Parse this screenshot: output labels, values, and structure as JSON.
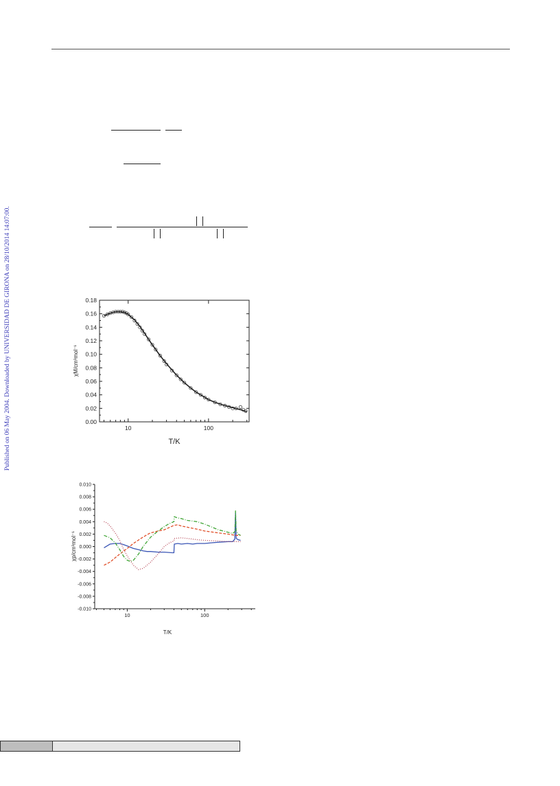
{
  "sidebar": {
    "watermark": "Published on 06 May 2004. Downloaded by UNIVERSIDAD DE GIRONA on 28/10/2014 14:07:00."
  },
  "chart_data": [
    {
      "type": "scatter",
      "title": "",
      "xlabel": "T/K",
      "ylabel": "χM/cm³mol⁻¹",
      "xscale": "log",
      "xlim": [
        4.4,
        320
      ],
      "ylim": [
        0,
        0.18
      ],
      "xticks": [
        10,
        100
      ],
      "xtick_labels": [
        "10",
        "100"
      ],
      "yticks": [
        0.0,
        0.02,
        0.04,
        0.06,
        0.08,
        0.1,
        0.12,
        0.14,
        0.16,
        0.18
      ],
      "ytick_labels": [
        "0.00",
        "0.02",
        "0.04",
        "0.06",
        "0.08",
        "0.10",
        "0.12",
        "0.14",
        "0.16",
        "0.18"
      ],
      "grid": false,
      "series": [
        {
          "kind": "points",
          "marker": "open-circle",
          "x": [
            5,
            5.5,
            6,
            6.5,
            7,
            7.5,
            8,
            8.5,
            9,
            9.5,
            10,
            11,
            12,
            13,
            14,
            15,
            16,
            18,
            20,
            22,
            25,
            28,
            30,
            35,
            40,
            45,
            50,
            60,
            70,
            80,
            90,
            100,
            120,
            140,
            160,
            180,
            200,
            220,
            250,
            270,
            290
          ],
          "y": [
            0.157,
            0.159,
            0.161,
            0.162,
            0.163,
            0.163,
            0.163,
            0.163,
            0.162,
            0.161,
            0.159,
            0.155,
            0.15,
            0.145,
            0.14,
            0.135,
            0.13,
            0.122,
            0.114,
            0.107,
            0.098,
            0.09,
            0.085,
            0.076,
            0.069,
            0.063,
            0.058,
            0.05,
            0.044,
            0.04,
            0.036,
            0.033,
            0.029,
            0.026,
            0.024,
            0.022,
            0.02,
            0.02,
            0.022,
            0.018,
            0.016
          ],
          "color": "#444444"
        },
        {
          "kind": "line",
          "x": [
            5,
            6,
            7,
            8,
            9,
            10,
            12,
            14,
            16,
            18,
            20,
            25,
            30,
            40,
            50,
            60,
            70,
            80,
            100,
            120,
            150,
            200,
            250,
            300
          ],
          "y": [
            0.157,
            0.161,
            0.163,
            0.163,
            0.162,
            0.159,
            0.151,
            0.141,
            0.131,
            0.122,
            0.114,
            0.098,
            0.086,
            0.069,
            0.058,
            0.05,
            0.044,
            0.04,
            0.033,
            0.029,
            0.025,
            0.021,
            0.018,
            0.015
          ],
          "color": "#222222"
        }
      ]
    },
    {
      "type": "line",
      "title": "",
      "xlabel": "T/K",
      "ylabel": "χp/cm³mol⁻¹",
      "xscale": "log",
      "xlim": [
        3.8,
        450
      ],
      "ylim": [
        -0.01,
        0.01
      ],
      "xticks": [
        10,
        100
      ],
      "xtick_labels": [
        "10",
        "100"
      ],
      "yticks": [
        -0.01,
        -0.008,
        -0.006,
        -0.004,
        -0.002,
        0.0,
        0.002,
        0.004,
        0.006,
        0.008,
        0.01
      ],
      "ytick_labels": [
        "-0.010",
        "-0.008",
        "-0.006",
        "-0.004",
        "-0.002",
        "0.000",
        "0.002",
        "0.004",
        "0.006",
        "0.008",
        "0.010"
      ],
      "grid": false,
      "series": [
        {
          "style": "solid",
          "color": "#3a55b5",
          "x": [
            5,
            6,
            7,
            8,
            9,
            10,
            12,
            14,
            16,
            18,
            20,
            25,
            30,
            38,
            40,
            40.5,
            45,
            50,
            60,
            70,
            80,
            100,
            120,
            150,
            200,
            230,
            245,
            250,
            255,
            270,
            290
          ],
          "y": [
            -0.0002,
            0.0004,
            0.0005,
            0.0005,
            0.0003,
            0.0001,
            -0.0003,
            -0.0005,
            -0.0007,
            -0.0008,
            -0.0008,
            -0.0009,
            -0.0009,
            -0.001,
            -0.001,
            0.0004,
            0.0005,
            0.0004,
            0.0005,
            0.0004,
            0.0005,
            0.0005,
            0.0006,
            0.0007,
            0.0008,
            0.0008,
            0.0012,
            0.0055,
            0.0013,
            0.0011,
            0.001
          ]
        },
        {
          "style": "dashed",
          "color": "#e0502a",
          "x": [
            5,
            6,
            7,
            8,
            10,
            12,
            15,
            18,
            20,
            25,
            30,
            40,
            45,
            50,
            60,
            80,
            100,
            150,
            200,
            250,
            290
          ],
          "y": [
            -0.003,
            -0.0025,
            -0.0018,
            -0.0012,
            -0.0003,
            0.0005,
            0.0013,
            0.0019,
            0.0022,
            0.0025,
            0.0027,
            0.0034,
            0.0035,
            0.0033,
            0.0031,
            0.0028,
            0.0025,
            0.0022,
            0.002,
            0.0018,
            0.0018
          ]
        },
        {
          "style": "dotted",
          "color": "#b84a5a",
          "x": [
            5,
            5.5,
            6,
            7,
            8,
            9,
            10,
            12,
            14,
            16,
            18,
            20,
            25,
            30,
            35,
            40,
            40.5,
            50,
            60,
            80,
            100,
            150,
            200,
            250,
            290
          ],
          "y": [
            0.004,
            0.0038,
            0.0033,
            0.0022,
            0.001,
            -0.0005,
            -0.0015,
            -0.003,
            -0.0037,
            -0.0035,
            -0.003,
            -0.0025,
            -0.0012,
            0.0,
            0.0006,
            0.0009,
            0.0013,
            0.0014,
            0.0013,
            0.0011,
            0.001,
            0.0009,
            0.0008,
            0.0008,
            0.0008
          ]
        },
        {
          "style": "dash-dot",
          "color": "#3fa535",
          "x": [
            5,
            6,
            7,
            8,
            9,
            10,
            11,
            12,
            14,
            16,
            20,
            25,
            30,
            35,
            40,
            40.5,
            45,
            50,
            60,
            80,
            100,
            120,
            150,
            200,
            230,
            245,
            250,
            255,
            270,
            290
          ],
          "y": [
            0.0018,
            0.0014,
            0.0006,
            -0.0005,
            -0.0016,
            -0.0022,
            -0.0024,
            -0.0022,
            -0.0012,
            0.0,
            0.0015,
            0.0025,
            0.0032,
            0.0037,
            0.004,
            0.0048,
            0.0046,
            0.0045,
            0.0042,
            0.004,
            0.0036,
            0.0032,
            0.0027,
            0.0023,
            0.0021,
            0.0024,
            0.0058,
            0.0025,
            0.002,
            0.0018
          ]
        }
      ]
    }
  ]
}
